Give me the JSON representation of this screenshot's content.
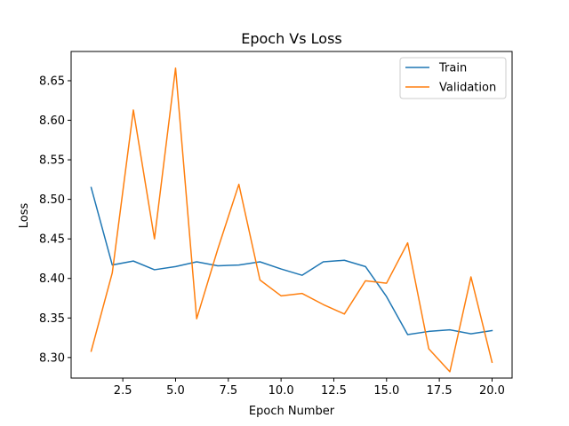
{
  "chart_data": {
    "type": "line",
    "title": "Epoch Vs Loss",
    "xlabel": "Epoch Number",
    "ylabel": "Loss",
    "xlim": [
      0.05,
      20.95
    ],
    "ylim": [
      8.274,
      8.687
    ],
    "x_ticks": [
      2.5,
      5.0,
      7.5,
      10.0,
      12.5,
      15.0,
      17.5,
      20.0
    ],
    "x_tick_labels": [
      "2.5",
      "5.0",
      "7.5",
      "10.0",
      "12.5",
      "15.0",
      "17.5",
      "20.0"
    ],
    "y_ticks": [
      8.3,
      8.35,
      8.4,
      8.45,
      8.5,
      8.55,
      8.6,
      8.65
    ],
    "y_tick_labels": [
      "8.30",
      "8.35",
      "8.40",
      "8.45",
      "8.50",
      "8.55",
      "8.60",
      "8.65"
    ],
    "grid": false,
    "legend_position": "top-right",
    "x": [
      1,
      2,
      3,
      4,
      5,
      6,
      7,
      8,
      9,
      10,
      11,
      12,
      13,
      14,
      15,
      16,
      17,
      18,
      19,
      20
    ],
    "series": [
      {
        "name": "Train",
        "color": "#1f77b4",
        "values": [
          8.515,
          8.417,
          8.422,
          8.411,
          8.415,
          8.421,
          8.416,
          8.417,
          8.421,
          8.412,
          8.404,
          8.421,
          8.423,
          8.415,
          8.377,
          8.329,
          8.333,
          8.335,
          8.33,
          8.334
        ]
      },
      {
        "name": "Validation",
        "color": "#ff7f0e",
        "values": [
          8.308,
          8.407,
          8.613,
          8.45,
          8.666,
          8.349,
          8.437,
          8.519,
          8.398,
          8.378,
          8.381,
          8.367,
          8.355,
          8.397,
          8.394,
          8.445,
          8.311,
          8.282,
          8.402,
          8.294
        ]
      }
    ]
  }
}
